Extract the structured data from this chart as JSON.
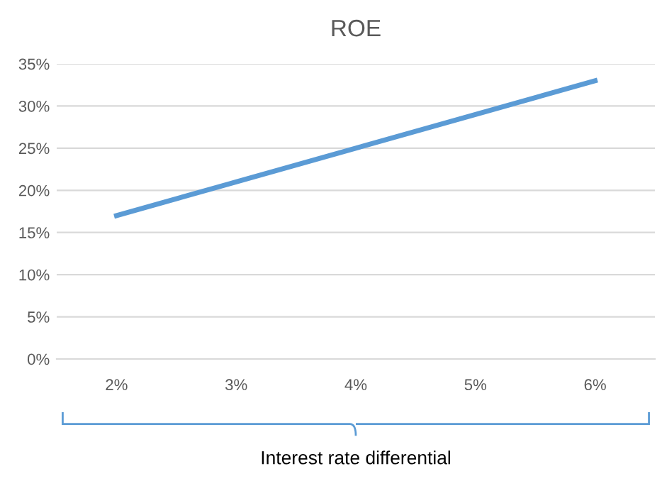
{
  "chart_data": {
    "type": "line",
    "title": "ROE",
    "xlabel": "Interest rate differential",
    "categories": [
      "2%",
      "3%",
      "4%",
      "5%",
      "6%"
    ],
    "series": [
      {
        "color": "#5b9bd5",
        "values": [
          17,
          21,
          25,
          29,
          33
        ]
      }
    ],
    "ylim": [
      0,
      35
    ],
    "yticks": [
      {
        "value": 0,
        "label": "0%"
      },
      {
        "value": 5,
        "label": "5%"
      },
      {
        "value": 10,
        "label": "10%"
      },
      {
        "value": 15,
        "label": "15%"
      },
      {
        "value": 20,
        "label": "20%"
      },
      {
        "value": 25,
        "label": "25%"
      },
      {
        "value": 30,
        "label": "30%"
      },
      {
        "value": 35,
        "label": "35%"
      }
    ],
    "grid": "y",
    "legend": false,
    "marker": "none",
    "line_style": "solid"
  }
}
